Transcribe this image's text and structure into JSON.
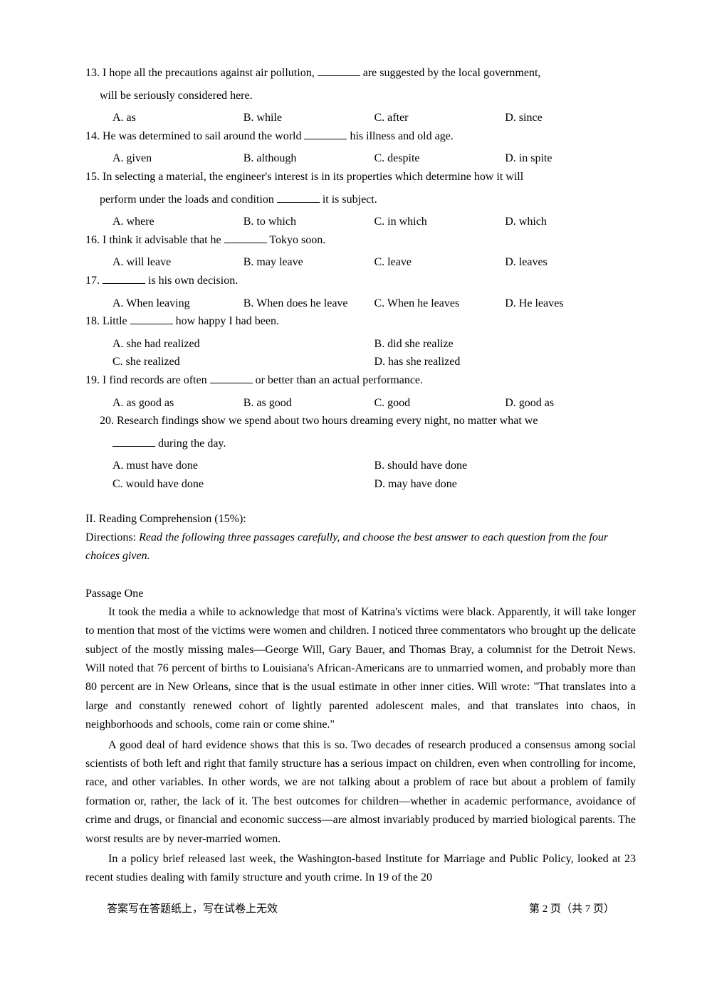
{
  "q13": {
    "line1_a": "13. I hope all the precautions against air pollution, ",
    "line1_b": " are suggested by the local government,",
    "line2": "will be seriously considered here.",
    "A": "A. as",
    "B": "B. while",
    "C": "C. after",
    "D": "D. since"
  },
  "q14": {
    "line1_a": "14. He was determined to sail around the world ",
    "line1_b": " his illness and old age.",
    "A": "A. given",
    "B": "B. although",
    "C": "C. despite",
    "D": "D. in spite"
  },
  "q15": {
    "line1": "15. In selecting a material, the engineer's interest is in its properties which determine how it will",
    "line2_a": "perform under the loads and condition ",
    "line2_b": " it is subject.",
    "A": "A. where",
    "B": "B. to which",
    "C": "C. in which",
    "D": "D. which"
  },
  "q16": {
    "line1_a": "16. I think it advisable that he ",
    "line1_b": " Tokyo soon.",
    "A": "A. will leave",
    "B": "B. may leave",
    "C": "C. leave",
    "D": "D. leaves"
  },
  "q17": {
    "line1_a": "17. ",
    "line1_b": " is his own decision.",
    "A": "A. When leaving",
    "B": "B. When does he leave",
    "C": "C. When he leaves",
    "D": "D. He leaves"
  },
  "q18": {
    "line1_a": "18. Little ",
    "line1_b": " how happy I had been.",
    "A": "A. she had realized",
    "B": "B. did she realize",
    "C": "C. she realized",
    "D": "D. has she realized"
  },
  "q19": {
    "line1_a": "19. I find records are often ",
    "line1_b": " or better than an actual performance.",
    "A": "A. as good as",
    "B": "B. as good",
    "C": "C. good",
    "D": "D. good as"
  },
  "q20": {
    "line1": "20. Research findings show we spend about two hours dreaming every night, no matter what we",
    "line2": " during the day.",
    "A": "A. must have done",
    "B": "B. should have done",
    "C": "C. would have done",
    "D": "D. may have done"
  },
  "section2": {
    "head": "II. Reading Comprehension (15%):",
    "dir_label": "Directions: ",
    "dir_text": "Read the following three passages carefully, and choose the best answer to each question from the four choices given."
  },
  "passage1": {
    "head": "Passage One",
    "p1": "It took the media a while to acknowledge that most of Katrina's victims were black. Apparently, it will take longer to mention that most of the victims were women and children. I noticed three commentators who brought up the delicate subject of the mostly missing males—George Will, Gary Bauer, and Thomas Bray, a columnist for the Detroit News. Will noted that 76 percent of births to Louisiana's African-Americans are to unmarried women, and probably more than 80 percent are in New Orleans, since that is the usual estimate in other inner cities. Will wrote: \"That translates into a large and constantly renewed cohort of lightly parented adolescent males, and that translates into chaos, in neighborhoods and schools, come rain or come shine.\"",
    "p2": "A good deal of hard evidence shows that this is so. Two decades of research produced a consensus among social scientists of both left and right that family structure has a serious impact on children, even when controlling for income, race, and other variables. In other words, we are not talking about a problem of race but about a problem of family formation or, rather, the lack of it. The best outcomes for children—whether in academic performance, avoidance of crime and drugs, or financial and economic success—are almost invariably produced by married biological parents. The worst results are by never-married women.",
    "p3": "In a policy brief released last week, the Washington-based Institute for Marriage and Public Policy, looked at 23 recent studies dealing with family structure and youth crime. In 19 of the 20"
  },
  "footer": {
    "left": "答案写在答题纸上，写在试卷上无效",
    "right": "第 2 页（共 7 页）"
  }
}
